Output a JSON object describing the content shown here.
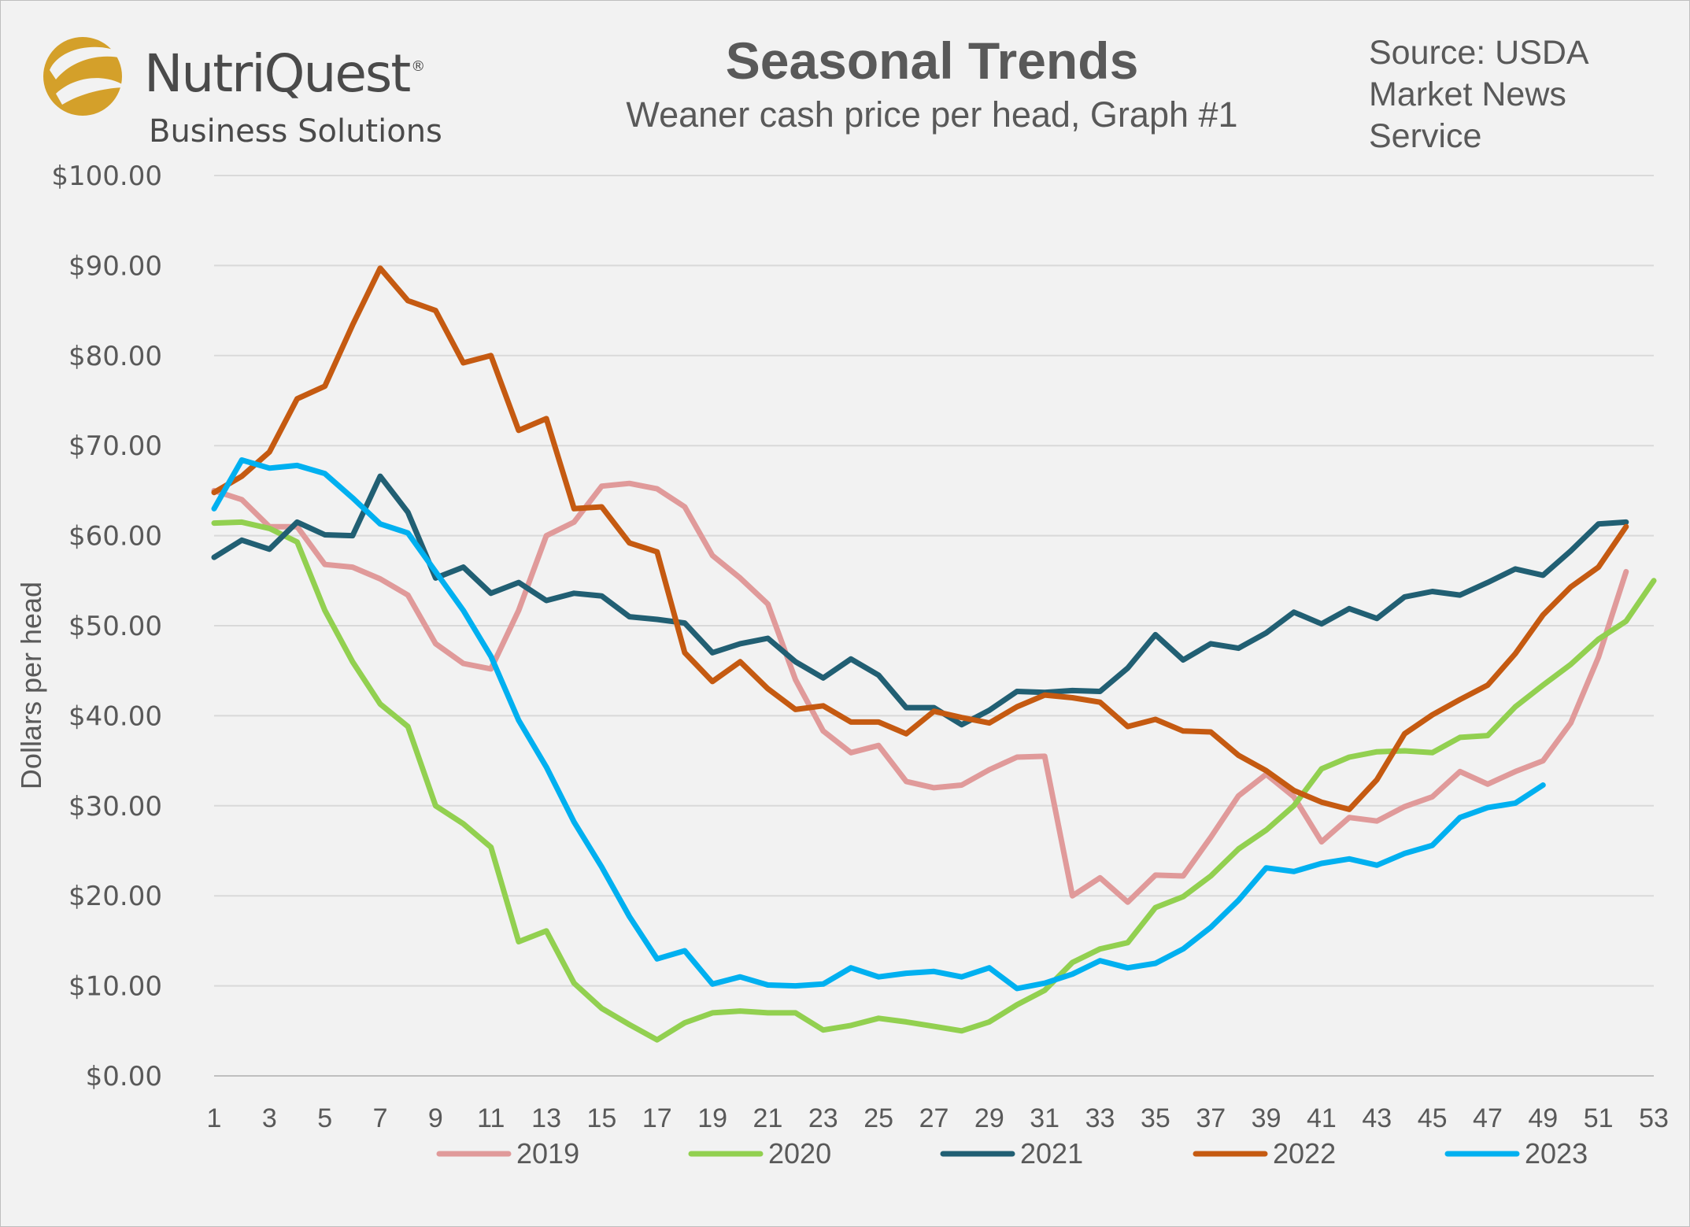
{
  "brand": {
    "name": "NutriQuest",
    "registered": "®",
    "tagline": "Business Solutions",
    "colors": {
      "emblem": "#d4a02a",
      "text": "#4a4a4a"
    }
  },
  "header": {
    "title": "Seasonal Trends",
    "subtitle": "Weaner cash price per head, Graph #1",
    "source": "Source: USDA Market News Service"
  },
  "chart_data": {
    "type": "line",
    "title": "Seasonal Trends",
    "subtitle": "Weaner cash price per head, Graph #1",
    "xlabel": "",
    "ylabel": "Dollars per head",
    "xlim": [
      1,
      53
    ],
    "ylim": [
      0,
      100
    ],
    "x_ticks": [
      1,
      3,
      5,
      7,
      9,
      11,
      13,
      15,
      17,
      19,
      21,
      23,
      25,
      27,
      29,
      31,
      33,
      35,
      37,
      39,
      41,
      43,
      45,
      47,
      49,
      51,
      53
    ],
    "y_ticks": [
      0,
      10,
      20,
      30,
      40,
      50,
      60,
      70,
      80,
      90,
      100
    ],
    "y_tick_labels": [
      "$0.00",
      "$10.00",
      "$20.00",
      "$30.00",
      "$40.00",
      "$50.00",
      "$60.00",
      "$70.00",
      "$80.00",
      "$90.00",
      "$100.00"
    ],
    "grid": true,
    "legend_position": "bottom",
    "series": [
      {
        "name": "2019",
        "color": "#e09a9a",
        "values": [
          65.0,
          64.0,
          61.0,
          61.0,
          56.8,
          56.5,
          55.2,
          53.4,
          48.0,
          45.8,
          45.2,
          51.7,
          60.0,
          61.5,
          65.5,
          65.8,
          65.2,
          63.2,
          57.8,
          55.3,
          52.4,
          44.0,
          38.3,
          35.9,
          36.7,
          32.7,
          32.0,
          32.3,
          34.0,
          35.4,
          35.5,
          20.0,
          22.0,
          19.3,
          22.3,
          22.2,
          26.5,
          31.1,
          33.5,
          31.0,
          26.0,
          28.7,
          28.3,
          29.9,
          31.0,
          33.8,
          32.4,
          33.8,
          35.0,
          39.2,
          46.5,
          56.0
        ]
      },
      {
        "name": "2020",
        "color": "#92d050",
        "values": [
          61.4,
          61.5,
          60.8,
          59.3,
          51.7,
          46.0,
          41.3,
          38.8,
          30.0,
          28.0,
          25.4,
          14.9,
          16.1,
          10.3,
          7.5,
          5.7,
          4.0,
          5.9,
          7.0,
          7.2,
          7.0,
          7.0,
          5.1,
          5.6,
          6.4,
          6.0,
          5.5,
          5.0,
          6.0,
          7.9,
          9.5,
          12.6,
          14.1,
          14.8,
          18.7,
          19.9,
          22.2,
          25.2,
          27.3,
          30.0,
          34.1,
          35.4,
          36.0,
          36.1,
          35.9,
          37.6,
          37.8,
          41.0,
          43.4,
          45.7,
          48.5,
          50.5,
          55.0
        ]
      },
      {
        "name": "2021",
        "color": "#215f73",
        "values": [
          57.6,
          59.5,
          58.5,
          61.5,
          60.1,
          60.0,
          66.6,
          62.6,
          55.3,
          56.5,
          53.6,
          54.8,
          52.8,
          53.6,
          53.3,
          51.0,
          50.7,
          50.3,
          47.0,
          48.0,
          48.6,
          46.0,
          44.2,
          46.3,
          44.5,
          40.9,
          40.9,
          39.0,
          40.6,
          42.7,
          42.6,
          42.8,
          42.7,
          45.3,
          49.0,
          46.2,
          48.0,
          47.5,
          49.2,
          51.5,
          50.2,
          51.9,
          50.8,
          53.2,
          53.8,
          53.4,
          54.8,
          56.3,
          55.6,
          58.3,
          61.3,
          61.5
        ]
      },
      {
        "name": "2022",
        "color": "#c55a11",
        "values": [
          64.8,
          66.6,
          69.3,
          75.2,
          76.6,
          83.4,
          89.7,
          86.1,
          85.0,
          79.2,
          80.0,
          71.7,
          73.0,
          63.0,
          63.2,
          59.2,
          58.2,
          47.0,
          43.8,
          46.0,
          43.0,
          40.7,
          41.1,
          39.3,
          39.3,
          38.0,
          40.5,
          39.8,
          39.2,
          41.0,
          42.3,
          42.0,
          41.5,
          38.8,
          39.6,
          38.3,
          38.2,
          35.6,
          33.9,
          31.7,
          30.4,
          29.6,
          32.9,
          38.0,
          40.1,
          41.8,
          43.4,
          46.9,
          51.2,
          54.3,
          56.5,
          61.0
        ]
      },
      {
        "name": "2023",
        "color": "#00b0f0",
        "values": [
          63.0,
          68.4,
          67.5,
          67.8,
          66.9,
          64.2,
          61.3,
          60.3,
          56.0,
          51.7,
          46.6,
          39.5,
          34.3,
          28.2,
          23.2,
          17.7,
          13.0,
          13.9,
          10.2,
          11.0,
          10.1,
          10.0,
          10.2,
          12.0,
          11.0,
          11.4,
          11.6,
          11.0,
          12.0,
          9.7,
          10.3,
          11.3,
          12.8,
          12.0,
          12.5,
          14.1,
          16.5,
          19.5,
          23.1,
          22.7,
          23.6,
          24.1,
          23.4,
          24.7,
          25.6,
          28.7,
          29.8,
          30.3,
          32.3
        ]
      }
    ]
  }
}
